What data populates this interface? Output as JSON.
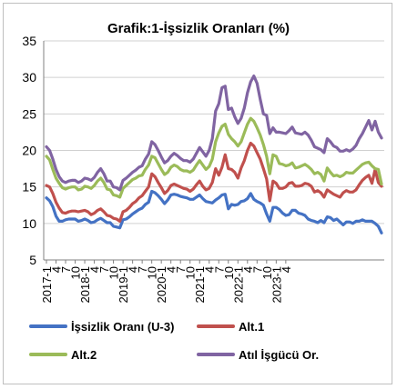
{
  "chart_data": {
    "type": "line",
    "title": "Grafik:1-İşsizlik Oranları (%)",
    "xlabel": "",
    "ylabel": "",
    "ylim": [
      5,
      35
    ],
    "yticks": [
      5,
      10,
      15,
      20,
      25,
      30,
      35
    ],
    "grid": true,
    "legend_position": "bottom",
    "x_tick_labels": [
      "2017-1",
      "4",
      "7",
      "10",
      "2018-1",
      "4",
      "7",
      "10",
      "2019-1",
      "4",
      "7",
      "10",
      "2020-1",
      "4",
      "7",
      "10",
      "2021-1",
      "4",
      "7",
      "10",
      "2022-1",
      "4",
      "7",
      "10",
      "2023-1",
      "4"
    ],
    "x_start": "2017-1",
    "series": [
      {
        "name": "İşsizlik Oranı (U-3)",
        "color": "#4472c4",
        "values": [
          13.5,
          13.1,
          12.3,
          11.0,
          10.3,
          10.3,
          10.5,
          10.6,
          10.6,
          10.6,
          10.3,
          10.4,
          10.6,
          10.4,
          10.1,
          10.2,
          10.5,
          10.7,
          10.4,
          10.1,
          10.1,
          9.6,
          9.5,
          9.4,
          10.5,
          10.6,
          10.9,
          11.3,
          11.6,
          11.9,
          12.1,
          12.6,
          12.9,
          14.4,
          14.2,
          13.8,
          13.3,
          12.7,
          13.2,
          13.9,
          14.0,
          13.9,
          13.7,
          13.6,
          13.5,
          13.3,
          13.3,
          13.6,
          13.9,
          13.4,
          13.0,
          12.9,
          12.8,
          13.2,
          13.5,
          13.9,
          14.0,
          12.0,
          12.6,
          12.5,
          12.6,
          13.0,
          13.1,
          13.4,
          14.1,
          13.3,
          13.0,
          12.8,
          12.5,
          11.3,
          10.3,
          12.2,
          12.2,
          11.9,
          11.4,
          11.1,
          11.2,
          11.8,
          11.8,
          11.4,
          11.3,
          11.1,
          10.6,
          10.4,
          10.3,
          10.1,
          10.4,
          10.1,
          10.9,
          10.8,
          10.4,
          10.6,
          10.2,
          9.8,
          10.2,
          10.2,
          10.0,
          10.3,
          10.3,
          10.5,
          10.3,
          10.3,
          10.3,
          10.0,
          9.6,
          8.7
        ]
      },
      {
        "name": "Alt.1",
        "color": "#c0504d",
        "values": [
          15.2,
          15.0,
          14.1,
          12.9,
          12.1,
          11.5,
          11.4,
          11.6,
          11.7,
          11.7,
          11.6,
          11.7,
          11.8,
          11.6,
          11.2,
          11.4,
          11.8,
          12.0,
          11.6,
          11.1,
          11.0,
          10.7,
          10.6,
          10.3,
          11.6,
          11.8,
          12.2,
          12.7,
          13.0,
          13.5,
          13.8,
          14.4,
          15.0,
          16.8,
          16.4,
          15.6,
          14.9,
          14.1,
          14.5,
          15.2,
          15.4,
          15.2,
          15.0,
          14.8,
          14.7,
          14.4,
          14.7,
          15.3,
          15.8,
          15.1,
          14.6,
          14.8,
          15.6,
          17.5,
          16.6,
          17.7,
          19.4,
          17.5,
          17.4,
          17.0,
          16.2,
          17.6,
          18.6,
          20.0,
          21.0,
          20.6,
          19.7,
          18.8,
          17.5,
          16.1,
          13.1,
          15.8,
          15.5,
          14.8,
          14.8,
          15.0,
          15.5,
          15.6,
          15.1,
          15.1,
          15.2,
          15.5,
          15.4,
          15.1,
          14.3,
          14.5,
          14.2,
          13.6,
          14.6,
          14.3,
          14.0,
          13.8,
          13.6,
          14.2,
          14.5,
          14.3,
          14.3,
          14.6,
          15.3,
          15.9,
          16.3,
          16.6,
          15.5,
          17.4,
          15.6,
          15.1
        ]
      },
      {
        "name": "Alt.2",
        "color": "#9bbb59",
        "values": [
          19.2,
          18.7,
          17.4,
          16.2,
          15.5,
          14.9,
          14.7,
          14.9,
          15.0,
          15.0,
          14.6,
          14.7,
          15.1,
          15.0,
          14.8,
          15.2,
          15.8,
          16.2,
          15.6,
          14.7,
          14.6,
          13.9,
          13.8,
          13.6,
          14.8,
          15.2,
          15.6,
          16.0,
          16.2,
          16.5,
          16.6,
          17.4,
          18.0,
          19.2,
          19.0,
          18.2,
          17.4,
          16.7,
          17.0,
          17.7,
          18.0,
          17.8,
          17.4,
          17.2,
          17.2,
          17.0,
          17.3,
          18.0,
          18.6,
          18.0,
          17.4,
          17.8,
          18.8,
          21.2,
          22.4,
          23.3,
          23.6,
          22.2,
          21.6,
          21.2,
          20.6,
          21.2,
          22.4,
          23.6,
          24.4,
          24.0,
          23.1,
          22.1,
          20.8,
          19.2,
          16.8,
          19.4,
          19.2,
          18.2,
          18.1,
          17.9,
          18.0,
          18.3,
          17.6,
          17.7,
          17.9,
          18.1,
          17.8,
          17.4,
          16.8,
          17.0,
          16.7,
          15.8,
          17.6,
          17.0,
          16.5,
          16.6,
          16.4,
          16.6,
          17.0,
          16.9,
          16.9,
          17.3,
          17.7,
          18.1,
          18.3,
          18.4,
          17.9,
          17.5,
          17.4,
          15.4
        ]
      },
      {
        "name": "Atıl İşgücü Or.",
        "color": "#8064a2",
        "values": [
          20.5,
          20.0,
          18.8,
          17.4,
          16.4,
          15.8,
          15.6,
          15.8,
          15.9,
          15.9,
          15.6,
          15.8,
          16.2,
          16.1,
          15.9,
          16.3,
          17.0,
          17.5,
          16.8,
          15.8,
          15.8,
          15.0,
          14.9,
          14.6,
          15.9,
          16.2,
          16.6,
          17.0,
          17.3,
          17.7,
          17.9,
          18.8,
          19.5,
          21.2,
          20.8,
          20.0,
          19.1,
          18.3,
          18.6,
          19.2,
          19.6,
          19.3,
          18.9,
          18.6,
          18.6,
          18.4,
          18.8,
          19.6,
          20.4,
          19.8,
          19.2,
          20.0,
          21.6,
          25.4,
          26.4,
          28.6,
          28.8,
          25.6,
          25.8,
          24.6,
          23.7,
          24.4,
          25.8,
          27.9,
          29.4,
          30.2,
          29.2,
          27.0,
          25.0,
          24.8,
          22.3,
          23.1,
          22.5,
          22.5,
          22.4,
          22.3,
          22.7,
          23.2,
          22.4,
          22.3,
          22.2,
          22.5,
          22.1,
          21.4,
          20.5,
          20.3,
          20.1,
          19.7,
          21.6,
          21.2,
          20.6,
          20.4,
          19.9,
          19.9,
          20.1,
          19.9,
          20.2,
          20.7,
          21.6,
          22.3,
          23.2,
          24.1,
          22.8,
          24.0,
          22.5,
          21.7
        ]
      }
    ]
  }
}
